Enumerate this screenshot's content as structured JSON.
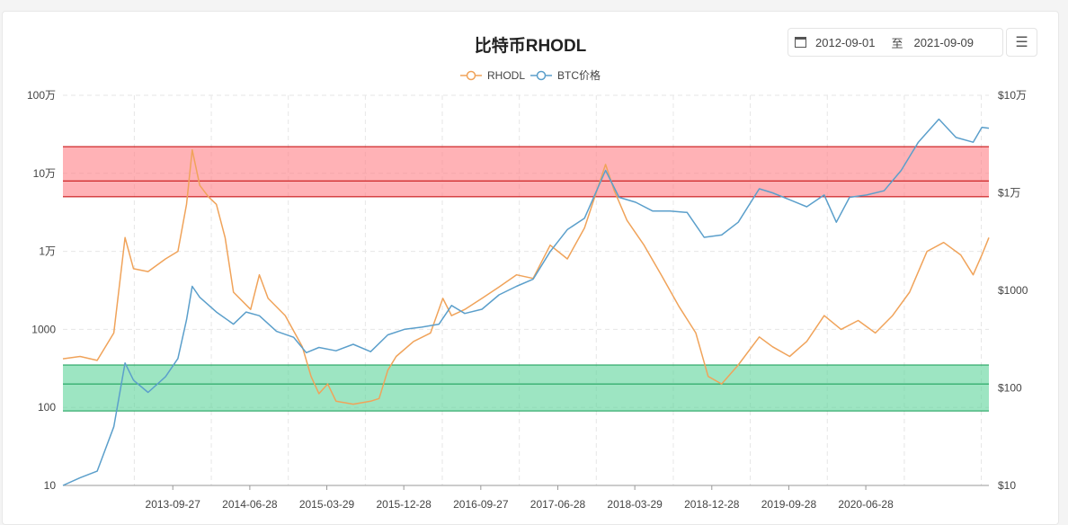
{
  "header": {
    "title": "比特币RHODL",
    "range_start": "2012-09-01",
    "range_sep": "至",
    "range_end": "2021-09-09",
    "calendar_icon": "calendar-icon",
    "menu_icon": "hamburger-menu-icon"
  },
  "chart_data": {
    "type": "line",
    "title": "比特币RHODL",
    "legend": {
      "placement": "top",
      "entries": [
        "RHODL",
        "BTC价格"
      ]
    },
    "x_range": [
      "2012-09-01",
      "2021-09-09"
    ],
    "x_ticks": [
      "2013-09-27",
      "2014-06-28",
      "2015-03-29",
      "2015-12-28",
      "2016-09-27",
      "2017-06-28",
      "2018-03-29",
      "2018-12-28",
      "2019-09-28",
      "2020-06-28"
    ],
    "y_left": {
      "scale": "log",
      "range": [
        10,
        1000000
      ],
      "ticks": [
        10,
        100,
        1000,
        10000,
        100000,
        1000000
      ],
      "tick_labels": [
        "10",
        "100",
        "1000",
        "1万",
        "10万",
        "100万"
      ]
    },
    "y_right": {
      "scale": "log",
      "range": [
        10,
        100000
      ],
      "ticks": [
        10,
        100,
        1000,
        10000,
        100000
      ],
      "tick_labels": [
        "$10",
        "$100",
        "$1000",
        "$1万",
        "$10万"
      ]
    },
    "grid": true,
    "bands": [
      {
        "color": "#ff7f86",
        "line_color": "#c00000",
        "top": 220000,
        "middle": 80000,
        "bottom": 50000,
        "axis": "left"
      },
      {
        "color": "#5cd39a",
        "line_color": "#0f9a50",
        "top": 350,
        "middle": 200,
        "bottom": 90,
        "axis": "left"
      }
    ],
    "series": [
      {
        "name": "RHODL",
        "color": "#f0a35a",
        "axis": "left",
        "points": [
          [
            "2012-09-01",
            420
          ],
          [
            "2012-11-01",
            450
          ],
          [
            "2013-01-01",
            400
          ],
          [
            "2013-03-01",
            900
          ],
          [
            "2013-04-10",
            15000
          ],
          [
            "2013-05-10",
            6000
          ],
          [
            "2013-07-01",
            5500
          ],
          [
            "2013-09-01",
            8000
          ],
          [
            "2013-10-15",
            10000
          ],
          [
            "2013-11-15",
            40000
          ],
          [
            "2013-12-05",
            200000
          ],
          [
            "2014-01-01",
            70000
          ],
          [
            "2014-02-01",
            50000
          ],
          [
            "2014-03-01",
            40000
          ],
          [
            "2014-04-01",
            15000
          ],
          [
            "2014-05-01",
            3000
          ],
          [
            "2014-07-01",
            1800
          ],
          [
            "2014-08-01",
            5000
          ],
          [
            "2014-09-01",
            2500
          ],
          [
            "2014-11-01",
            1500
          ],
          [
            "2015-01-01",
            600
          ],
          [
            "2015-02-01",
            250
          ],
          [
            "2015-03-01",
            150
          ],
          [
            "2015-04-01",
            200
          ],
          [
            "2015-05-01",
            120
          ],
          [
            "2015-07-01",
            110
          ],
          [
            "2015-09-01",
            120
          ],
          [
            "2015-10-01",
            130
          ],
          [
            "2015-11-01",
            300
          ],
          [
            "2015-12-01",
            450
          ],
          [
            "2016-02-01",
            700
          ],
          [
            "2016-04-01",
            900
          ],
          [
            "2016-05-15",
            2500
          ],
          [
            "2016-06-15",
            1500
          ],
          [
            "2016-08-01",
            1800
          ],
          [
            "2016-10-01",
            2500
          ],
          [
            "2016-12-01",
            3500
          ],
          [
            "2017-02-01",
            5000
          ],
          [
            "2017-04-01",
            4500
          ],
          [
            "2017-06-01",
            12000
          ],
          [
            "2017-08-01",
            8000
          ],
          [
            "2017-10-01",
            20000
          ],
          [
            "2017-12-15",
            130000
          ],
          [
            "2018-01-15",
            60000
          ],
          [
            "2018-03-01",
            25000
          ],
          [
            "2018-05-01",
            12000
          ],
          [
            "2018-07-01",
            5000
          ],
          [
            "2018-09-01",
            2000
          ],
          [
            "2018-11-01",
            900
          ],
          [
            "2018-12-15",
            250
          ],
          [
            "2019-02-01",
            200
          ],
          [
            "2019-04-01",
            350
          ],
          [
            "2019-06-15",
            800
          ],
          [
            "2019-08-01",
            600
          ],
          [
            "2019-10-01",
            450
          ],
          [
            "2019-12-01",
            700
          ],
          [
            "2020-02-01",
            1500
          ],
          [
            "2020-04-01",
            1000
          ],
          [
            "2020-06-01",
            1300
          ],
          [
            "2020-08-01",
            900
          ],
          [
            "2020-10-01",
            1500
          ],
          [
            "2020-12-01",
            3000
          ],
          [
            "2021-02-01",
            10000
          ],
          [
            "2021-04-01",
            13000
          ],
          [
            "2021-06-01",
            9000
          ],
          [
            "2021-07-15",
            5000
          ],
          [
            "2021-08-15",
            9000
          ],
          [
            "2021-09-09",
            15000
          ]
        ]
      },
      {
        "name": "BTC价格",
        "color": "#5b9fcb",
        "axis": "right",
        "points": [
          [
            "2012-09-01",
            10
          ],
          [
            "2012-11-01",
            12
          ],
          [
            "2013-01-01",
            14
          ],
          [
            "2013-03-01",
            40
          ],
          [
            "2013-04-10",
            180
          ],
          [
            "2013-05-10",
            120
          ],
          [
            "2013-07-01",
            90
          ],
          [
            "2013-09-01",
            130
          ],
          [
            "2013-10-15",
            200
          ],
          [
            "2013-11-15",
            500
          ],
          [
            "2013-12-05",
            1100
          ],
          [
            "2014-01-01",
            850
          ],
          [
            "2014-03-01",
            600
          ],
          [
            "2014-05-01",
            450
          ],
          [
            "2014-06-15",
            600
          ],
          [
            "2014-08-01",
            550
          ],
          [
            "2014-10-01",
            380
          ],
          [
            "2014-12-01",
            330
          ],
          [
            "2015-01-15",
            230
          ],
          [
            "2015-03-01",
            260
          ],
          [
            "2015-05-01",
            240
          ],
          [
            "2015-07-01",
            280
          ],
          [
            "2015-09-01",
            235
          ],
          [
            "2015-11-01",
            350
          ],
          [
            "2016-01-01",
            400
          ],
          [
            "2016-03-01",
            420
          ],
          [
            "2016-05-01",
            450
          ],
          [
            "2016-06-15",
            700
          ],
          [
            "2016-08-01",
            580
          ],
          [
            "2016-10-01",
            640
          ],
          [
            "2016-12-01",
            900
          ],
          [
            "2017-02-01",
            1100
          ],
          [
            "2017-04-01",
            1300
          ],
          [
            "2017-06-01",
            2500
          ],
          [
            "2017-08-01",
            4200
          ],
          [
            "2017-10-01",
            5500
          ],
          [
            "2017-12-15",
            17000
          ],
          [
            "2018-02-01",
            9000
          ],
          [
            "2018-04-01",
            8000
          ],
          [
            "2018-06-01",
            6500
          ],
          [
            "2018-08-01",
            6500
          ],
          [
            "2018-10-01",
            6300
          ],
          [
            "2018-12-01",
            3500
          ],
          [
            "2019-02-01",
            3700
          ],
          [
            "2019-04-01",
            5000
          ],
          [
            "2019-06-15",
            11000
          ],
          [
            "2019-08-01",
            10000
          ],
          [
            "2019-10-01",
            8500
          ],
          [
            "2019-12-01",
            7200
          ],
          [
            "2020-02-01",
            9500
          ],
          [
            "2020-03-15",
            5000
          ],
          [
            "2020-05-01",
            9000
          ],
          [
            "2020-07-01",
            9500
          ],
          [
            "2020-09-01",
            10500
          ],
          [
            "2020-11-01",
            17000
          ],
          [
            "2021-01-01",
            33000
          ],
          [
            "2021-03-15",
            57000
          ],
          [
            "2021-05-15",
            37000
          ],
          [
            "2021-07-15",
            33000
          ],
          [
            "2021-08-15",
            47000
          ],
          [
            "2021-09-09",
            46000
          ]
        ]
      }
    ]
  }
}
